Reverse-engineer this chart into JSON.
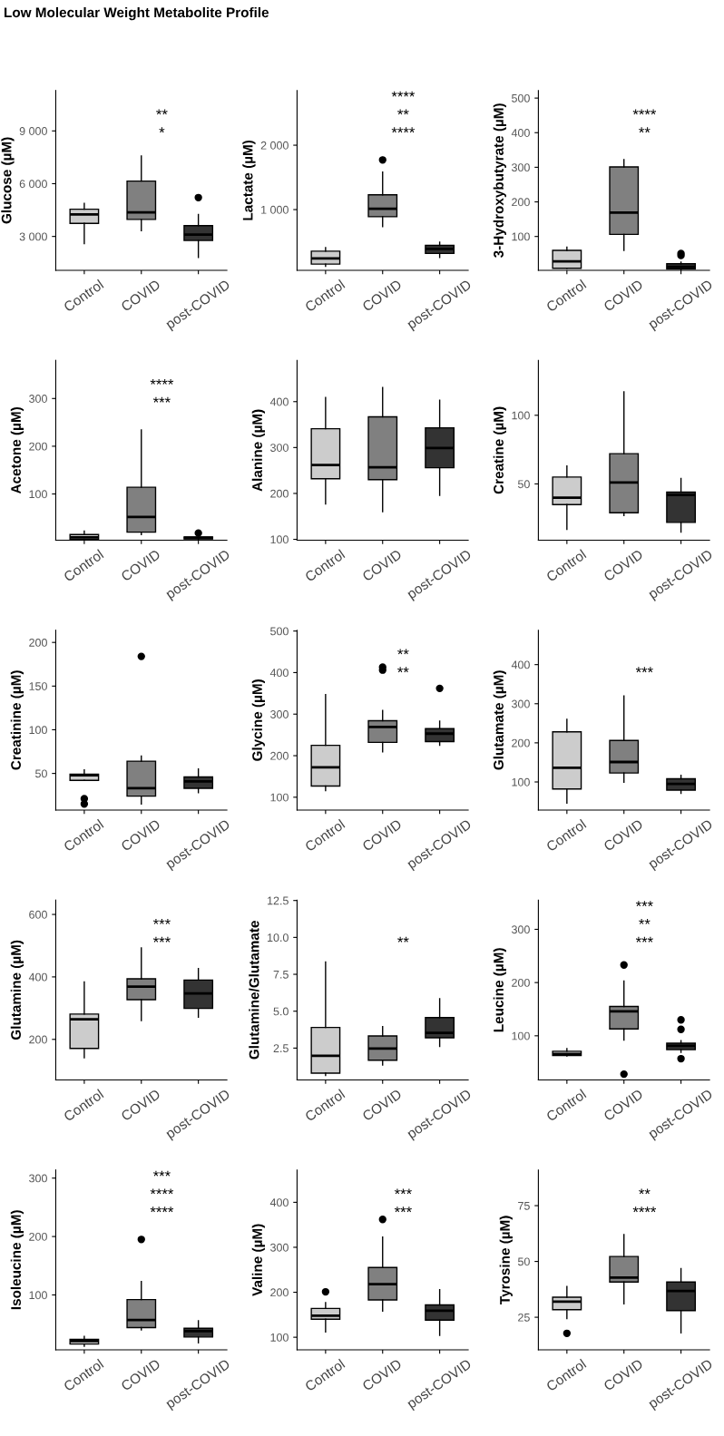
{
  "chart_data": [
    {
      "type": "box",
      "title": "Low Molecular Weight Metabolite Profile",
      "ylabel": "Glucose (µM)",
      "categories": [
        "Control",
        "COVID",
        "post-COVID"
      ],
      "colors": [
        "#cccccc",
        "#808080",
        "#333333"
      ],
      "ylim": [
        1070,
        11300
      ],
      "yticks": [
        {
          "value": 3000,
          "label": "3 000"
        },
        {
          "value": 6000,
          "label": "6 000"
        },
        {
          "value": 9000,
          "label": "9 000"
        }
      ],
      "boxes": [
        {
          "low": 2590,
          "q1": 3740,
          "median": 4250,
          "q3": 4550,
          "high": 4880
        },
        {
          "low": 3330,
          "q1": 3970,
          "median": 4370,
          "q3": 6150,
          "high": 7570
        },
        {
          "low": 1800,
          "q1": 2770,
          "median": 3100,
          "q3": 3610,
          "high": 4250,
          "outliers": [
            5210
          ]
        }
      ],
      "annotations": [
        "*",
        "**"
      ]
    },
    {
      "type": "box",
      "ylabel": "Lactate (µM)",
      "categories": [
        "Control",
        "COVID",
        "post-COVID"
      ],
      "colors": [
        "#cccccc",
        "#808080",
        "#333333"
      ],
      "ylim": [
        56,
        2850
      ],
      "yticks": [
        {
          "value": 1000,
          "label": "1 000"
        },
        {
          "value": 2000,
          "label": "2 000"
        }
      ],
      "boxes": [
        {
          "low": 118,
          "q1": 153,
          "median": 243,
          "q3": 354,
          "high": 410
        },
        {
          "low": 736,
          "q1": 889,
          "median": 1014,
          "q3": 1229,
          "high": 1583,
          "outliers": [
            1771
          ]
        },
        {
          "low": 257,
          "q1": 319,
          "median": 389,
          "q3": 444,
          "high": 493
        }
      ],
      "annotations": [
        "****",
        "**",
        "****"
      ]
    },
    {
      "type": "box",
      "ylabel": "3-Hydroxybutyrate (µM)",
      "categories": [
        "Control",
        "COVID",
        "post-COVID"
      ],
      "colors": [
        "#cccccc",
        "#808080",
        "#333333"
      ],
      "ylim": [
        2,
        522
      ],
      "yticks": [
        100,
        200,
        300,
        400,
        500
      ],
      "boxes": [
        {
          "low": 8,
          "q1": 8,
          "median": 28,
          "q3": 60,
          "high": 69
        },
        {
          "low": 60,
          "q1": 106,
          "median": 169,
          "q3": 301,
          "high": 322
        },
        {
          "low": 3,
          "q1": 6,
          "median": 12,
          "q3": 21,
          "high": 26,
          "outliers": [
            45,
            51
          ]
        }
      ],
      "annotations": [
        "**",
        "****"
      ]
    },
    {
      "type": "box",
      "ylabel": "Acetone (µM)",
      "categories": [
        "Control",
        "COVID",
        "post-COVID"
      ],
      "colors": [
        "#cccccc",
        "#808080",
        "#333333"
      ],
      "ylim": [
        3,
        380
      ],
      "yticks": [
        100,
        200,
        300
      ],
      "boxes": [
        {
          "low": 3,
          "q1": 5,
          "median": 9,
          "q3": 15,
          "high": 22
        },
        {
          "low": 15,
          "q1": 20,
          "median": 52,
          "q3": 114,
          "high": 234
        },
        {
          "low": 5,
          "q1": 6,
          "median": 8,
          "q3": 10,
          "high": 12,
          "outliers": [
            18
          ]
        }
      ],
      "annotations": [
        "***",
        "****"
      ]
    },
    {
      "type": "box",
      "ylabel": "Alanine (µM)",
      "categories": [
        "Control",
        "COVID",
        "post-COVID"
      ],
      "colors": [
        "#cccccc",
        "#808080",
        "#333333"
      ],
      "ylim": [
        98,
        490
      ],
      "yticks": [
        100,
        200,
        300,
        400
      ],
      "boxes": [
        {
          "low": 177,
          "q1": 232,
          "median": 262,
          "q3": 341,
          "high": 409
        },
        {
          "low": 160,
          "q1": 230,
          "median": 257,
          "q3": 367,
          "high": 431
        },
        {
          "low": 196,
          "q1": 256,
          "median": 299,
          "q3": 343,
          "high": 403
        }
      ]
    },
    {
      "type": "box",
      "ylabel": "Creatine (µM)",
      "categories": [
        "Control",
        "COVID",
        "post-COVID"
      ],
      "colors": [
        "#cccccc",
        "#808080",
        "#333333"
      ],
      "ylim": [
        9,
        140
      ],
      "yticks": [
        50,
        100
      ],
      "boxes": [
        {
          "low": 17,
          "q1": 35,
          "median": 40,
          "q3": 55,
          "high": 63
        },
        {
          "low": 27,
          "q1": 29,
          "median": 51,
          "q3": 72,
          "high": 117
        },
        {
          "low": 15,
          "q1": 22,
          "median": 42,
          "q3": 44,
          "high": 54
        }
      ]
    },
    {
      "type": "box",
      "ylabel": "Creatinine (µM)",
      "categories": [
        "Control",
        "COVID",
        "post-COVID"
      ],
      "colors": [
        "#cccccc",
        "#808080",
        "#333333"
      ],
      "ylim": [
        8,
        214
      ],
      "yticks": [
        50,
        100,
        150,
        200
      ],
      "boxes": [
        {
          "low": 42,
          "q1": 42,
          "median": 48,
          "q3": 49,
          "high": 54,
          "outliers": [
            15,
            21
          ]
        },
        {
          "low": 15,
          "q1": 24,
          "median": 33,
          "q3": 64,
          "high": 70,
          "outliers": [
            184
          ]
        },
        {
          "low": 28,
          "q1": 33,
          "median": 41,
          "q3": 46,
          "high": 55
        }
      ]
    },
    {
      "type": "box",
      "ylabel": "Glycine (µM)",
      "categories": [
        "Control",
        "COVID",
        "post-COVID"
      ],
      "colors": [
        "#cccccc",
        "#808080",
        "#333333"
      ],
      "ylim": [
        69,
        502
      ],
      "yticks": [
        100,
        200,
        300,
        400,
        500
      ],
      "boxes": [
        {
          "low": 116,
          "q1": 127,
          "median": 172,
          "q3": 225,
          "high": 347
        },
        {
          "low": 209,
          "q1": 232,
          "median": 269,
          "q3": 284,
          "high": 309,
          "outliers": [
            406,
            413
          ]
        },
        {
          "low": 225,
          "q1": 234,
          "median": 253,
          "q3": 265,
          "high": 283,
          "outliers": [
            362
          ]
        }
      ],
      "annotations": [
        "**",
        "**"
      ]
    },
    {
      "type": "box",
      "ylabel": "Glutamate (µM)",
      "categories": [
        "Control",
        "COVID",
        "post-COVID"
      ],
      "colors": [
        "#cccccc",
        "#808080",
        "#333333"
      ],
      "ylim": [
        28,
        488
      ],
      "yticks": [
        100,
        200,
        300,
        400
      ],
      "boxes": [
        {
          "low": 46,
          "q1": 82,
          "median": 136,
          "q3": 228,
          "high": 260
        },
        {
          "low": 99,
          "q1": 123,
          "median": 151,
          "q3": 206,
          "high": 320
        },
        {
          "low": 71,
          "q1": 79,
          "median": 95,
          "q3": 108,
          "high": 117
        }
      ],
      "annotations": [
        "***"
      ]
    },
    {
      "type": "box",
      "ylabel": "Glutamine (µM)",
      "categories": [
        "Control",
        "COVID",
        "post-COVID"
      ],
      "colors": [
        "#cccccc",
        "#808080",
        "#333333"
      ],
      "ylim": [
        70,
        646
      ],
      "yticks": [
        200,
        400,
        600
      ],
      "boxes": [
        {
          "low": 141,
          "q1": 171,
          "median": 264,
          "q3": 281,
          "high": 384
        },
        {
          "low": 260,
          "q1": 327,
          "median": 369,
          "q3": 394,
          "high": 493
        },
        {
          "low": 271,
          "q1": 299,
          "median": 347,
          "q3": 390,
          "high": 427
        }
      ],
      "annotations": [
        "***",
        "***"
      ]
    },
    {
      "type": "box",
      "ylabel": "Glutamine/Glutamate",
      "categories": [
        "Control",
        "COVID",
        "post-COVID"
      ],
      "colors": [
        "#cccccc",
        "#808080",
        "#333333"
      ],
      "ylim": [
        0.34,
        12.53
      ],
      "yticks": [
        {
          "value": 2.5,
          "label": "2.5"
        },
        {
          "value": 5,
          "label": "5.0"
        },
        {
          "value": 7.5,
          "label": "7.5"
        },
        {
          "value": 10,
          "label": "10.0"
        },
        {
          "value": 12.5,
          "label": "12.5"
        }
      ],
      "boxes": [
        {
          "low": 0.65,
          "q1": 0.8,
          "median": 1.98,
          "q3": 3.9,
          "high": 8.33
        },
        {
          "low": 1.35,
          "q1": 1.68,
          "median": 2.47,
          "q3": 3.32,
          "high": 3.96
        },
        {
          "low": 2.62,
          "q1": 3.2,
          "median": 3.53,
          "q3": 4.57,
          "high": 5.85
        }
      ],
      "annotations": [
        "**"
      ]
    },
    {
      "type": "box",
      "ylabel": "Leucine (µM)",
      "categories": [
        "Control",
        "COVID",
        "post-COVID"
      ],
      "colors": [
        "#cccccc",
        "#808080",
        "#333333"
      ],
      "ylim": [
        17,
        355
      ],
      "yticks": [
        100,
        200,
        300
      ],
      "boxes": [
        {
          "low": 62,
          "q1": 63,
          "median": 66,
          "q3": 71,
          "high": 76
        },
        {
          "low": 92,
          "q1": 113,
          "median": 146,
          "q3": 155,
          "high": 203,
          "outliers": [
            28,
            233
          ]
        },
        {
          "low": 69,
          "q1": 74,
          "median": 81,
          "q3": 86,
          "high": 91,
          "outliers": [
            57,
            112,
            130
          ]
        }
      ],
      "annotations": [
        "***",
        "**",
        "***"
      ]
    },
    {
      "type": "box",
      "ylabel": "Isoleucine (µM)",
      "categories": [
        "Control",
        "COVID",
        "post-COVID"
      ],
      "colors": [
        "#cccccc",
        "#808080",
        "#333333"
      ],
      "ylim": [
        6,
        314
      ],
      "yticks": [
        100,
        200,
        300
      ],
      "boxes": [
        {
          "low": 12,
          "q1": 16,
          "median": 21,
          "q3": 24,
          "high": 29
        },
        {
          "low": 40,
          "q1": 44,
          "median": 57,
          "q3": 92,
          "high": 123,
          "outliers": [
            195
          ]
        },
        {
          "low": 18,
          "q1": 28,
          "median": 38,
          "q3": 43,
          "high": 56
        }
      ],
      "annotations": [
        "****",
        "****",
        "***"
      ]
    },
    {
      "type": "box",
      "ylabel": "Valine (µM)",
      "categories": [
        "Control",
        "COVID",
        "post-COVID"
      ],
      "colors": [
        "#cccccc",
        "#808080",
        "#333333"
      ],
      "ylim": [
        72,
        472
      ],
      "yticks": [
        100,
        200,
        300,
        400
      ],
      "boxes": [
        {
          "low": 112,
          "q1": 140,
          "median": 148,
          "q3": 164,
          "high": 177,
          "outliers": [
            201
          ]
        },
        {
          "low": 158,
          "q1": 183,
          "median": 218,
          "q3": 255,
          "high": 323,
          "outliers": [
            362
          ]
        },
        {
          "low": 104,
          "q1": 138,
          "median": 159,
          "q3": 172,
          "high": 206
        }
      ],
      "annotations": [
        "***",
        "***"
      ]
    },
    {
      "type": "box",
      "ylabel": "Tyrosine (µM)",
      "categories": [
        "Control",
        "COVID",
        "post-COVID"
      ],
      "colors": [
        "#cccccc",
        "#808080",
        "#333333"
      ],
      "ylim": [
        10.4,
        91
      ],
      "yticks": [
        25,
        50,
        75
      ],
      "boxes": [
        {
          "low": 24.4,
          "q1": 28.4,
          "median": 32,
          "q3": 34,
          "high": 38.8,
          "outliers": [
            17.8
          ]
        },
        {
          "low": 31,
          "q1": 40.8,
          "median": 42.8,
          "q3": 52.2,
          "high": 62
        },
        {
          "low": 18,
          "q1": 28,
          "median": 36.8,
          "q3": 40.8,
          "high": 46.8
        }
      ],
      "annotations": [
        "****",
        "**"
      ]
    }
  ]
}
